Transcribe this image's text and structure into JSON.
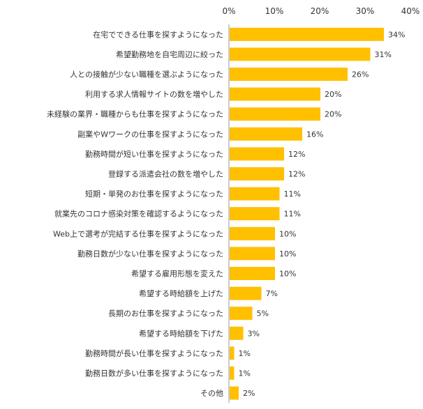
{
  "chart_data": {
    "type": "bar",
    "orientation": "horizontal",
    "categories": [
      "在宅でできる仕事を探すようになった",
      "希望勤務地を自宅周辺に絞った",
      "人との接触が少ない職種を選ぶようになった",
      "利用する求人情報サイトの数を増やした",
      "未経験の業界・職種からも仕事を探すようになった",
      "副業やWワークの仕事を探すようになった",
      "勤務時間が短い仕事を探すようになった",
      "登録する派遣会社の数を増やした",
      "短期・単発のお仕事を探すようになった",
      "就業先のコロナ感染対策を確認するようになった",
      "Web上で選考が完結する仕事を探すようになった",
      "勤務日数が少ない仕事を探すようになった",
      "希望する雇用形態を変えた",
      "希望する時給額を上げた",
      "長期のお仕事を探すようになった",
      "希望する時給額を下げた",
      "勤務時間が長い仕事を探すようになった",
      "勤務日数が多い仕事を探すようになった",
      "その他"
    ],
    "values": [
      34,
      31,
      26,
      20,
      20,
      16,
      12,
      12,
      11,
      11,
      10,
      10,
      10,
      7,
      5,
      3,
      1,
      1,
      2
    ],
    "value_labels": [
      "34%",
      "31%",
      "26%",
      "20%",
      "20%",
      "16%",
      "12%",
      "12%",
      "11%",
      "11%",
      "10%",
      "10%",
      "10%",
      "7%",
      "5%",
      "3%",
      "1%",
      "1%",
      "2%"
    ],
    "axis_ticks": [
      "0%",
      "10%",
      "20%",
      "30%",
      "40%"
    ],
    "xlim": [
      0,
      40
    ],
    "axis_position": "top",
    "grid": false,
    "legend": "none",
    "title": "",
    "xlabel": "",
    "ylabel": "",
    "colors": {
      "bar": "#FFC000",
      "text": "#333333",
      "axis": "#999999"
    }
  }
}
